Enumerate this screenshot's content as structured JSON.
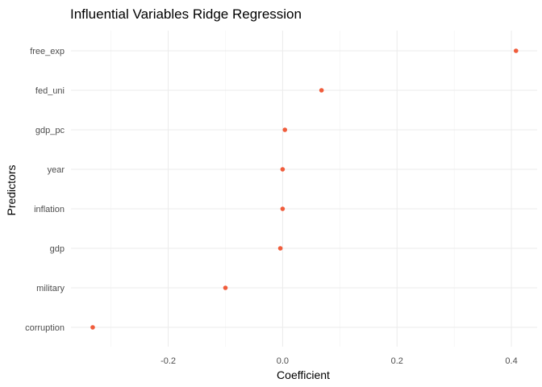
{
  "chart_data": {
    "type": "scatter",
    "title": "Influential Variables Ridge Regression",
    "xlabel": "Coefficient",
    "ylabel": "Predictors",
    "xlim": [
      -0.333,
      0.41
    ],
    "x_ticks": [
      -0.2,
      0.0,
      0.2,
      0.4
    ],
    "x_tick_labels": [
      "-0.2",
      "0.0",
      "0.2",
      "0.4"
    ],
    "grid": true,
    "legend": "none",
    "point_color": "#f05c3b",
    "categories": [
      "free_exp",
      "fed_uni",
      "gdp_pc",
      "year",
      "inflation",
      "gdp",
      "military",
      "corruption"
    ],
    "values": [
      0.408,
      0.068,
      0.004,
      0.0,
      0.0,
      -0.004,
      -0.1,
      -0.332
    ]
  }
}
